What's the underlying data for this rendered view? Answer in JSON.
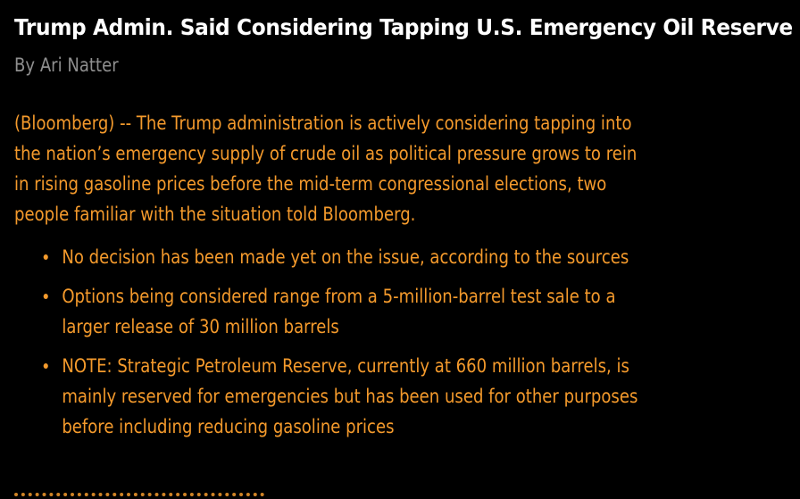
{
  "article": {
    "headline": "Trump Admin. Said Considering Tapping U.S. Emergency Oil Reserve",
    "byline": "By Ari Natter",
    "lead": "(Bloomberg) -- The Trump administration is actively considering tapping into the nation’s emergency supply of crude oil as political pressure grows to rein in rising gasoline prices before the mid-term congressional elections, two people familiar with the situation told Bloomberg.",
    "bullets": [
      "No decision has been made yet on the issue, according to the sources",
      "Options being considered range from a 5-million-barrel test sale to a larger release of 30 million barrels",
      "NOTE: Strategic Petroleum Reserve, currently at 660 million barrels, is mainly reserved for emergencies but has been used for other purposes before including reducing gasoline prices"
    ]
  },
  "colors": {
    "background": "#000000",
    "headline": "#ffffff",
    "byline": "#8f8f8f",
    "body": "#f49a2c"
  }
}
